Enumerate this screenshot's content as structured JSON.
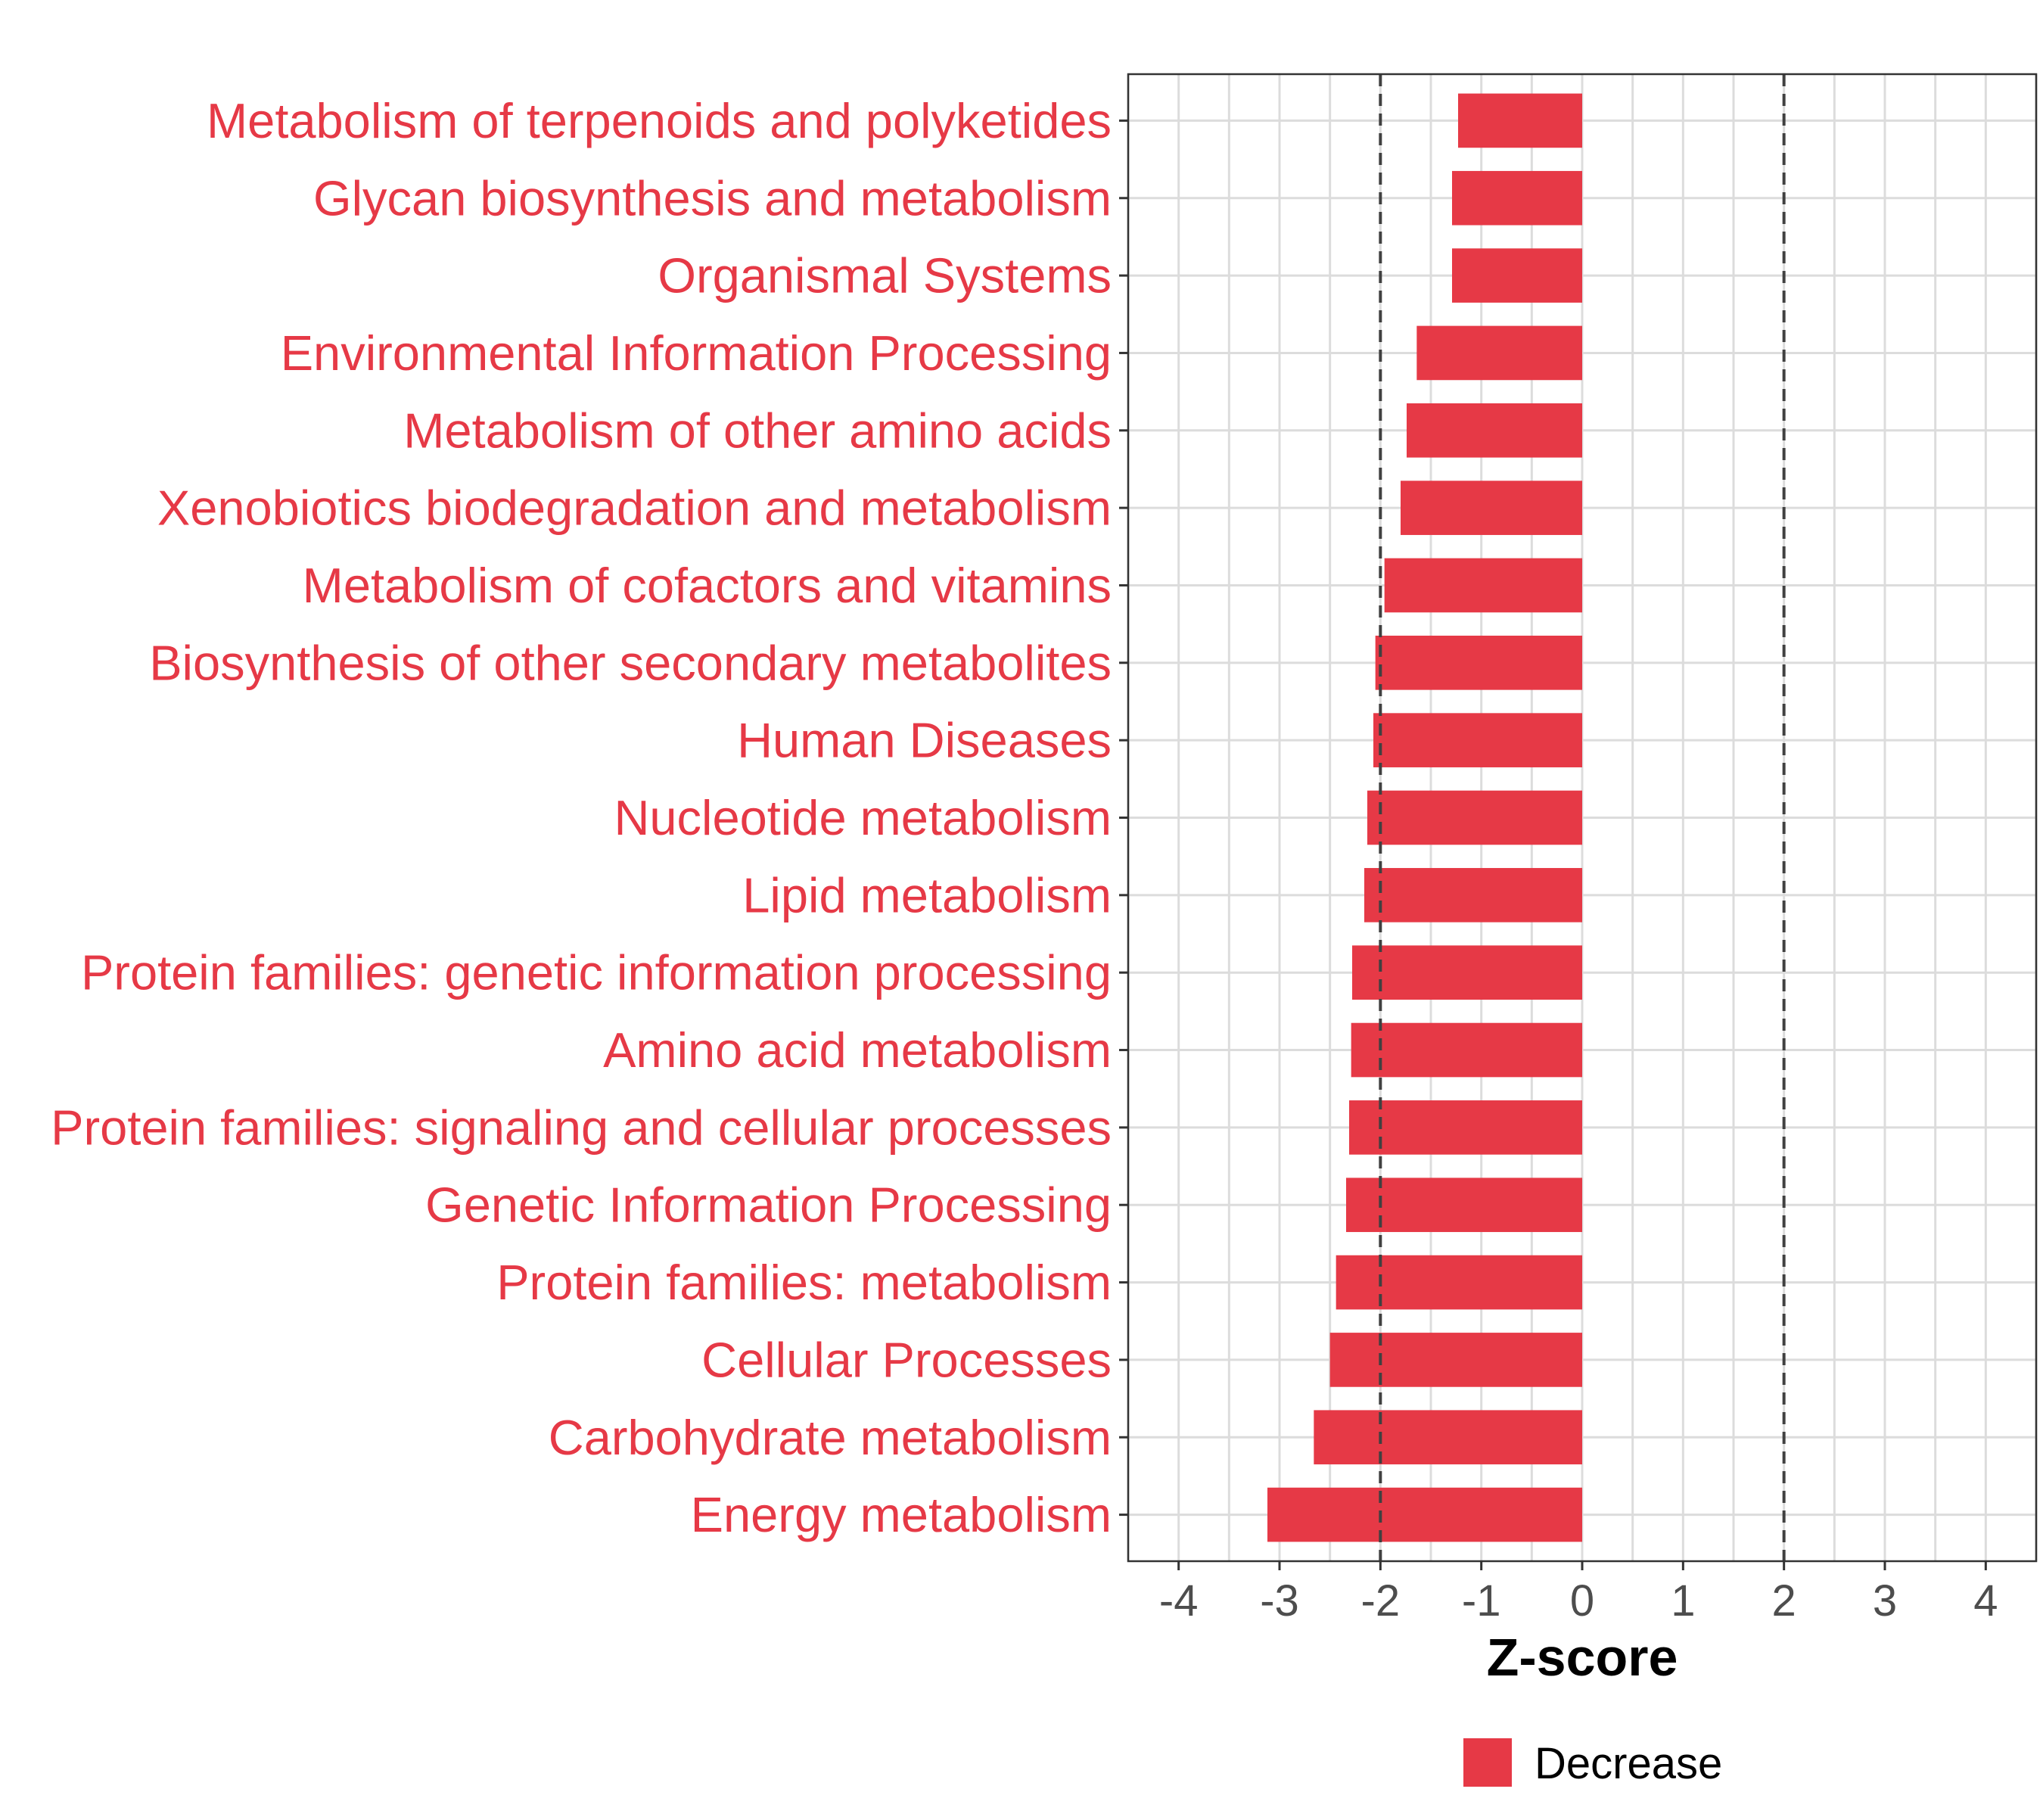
{
  "chart_data": {
    "type": "bar",
    "orientation": "horizontal",
    "categories": [
      "Metabolism of terpenoids and polyketides",
      "Glycan biosynthesis and metabolism",
      "Organismal Systems",
      "Environmental Information Processing",
      "Metabolism of other amino acids",
      "Xenobiotics biodegradation and metabolism",
      "Metabolism of cofactors and vitamins",
      "Biosynthesis of other secondary metabolites",
      "Human Diseases",
      "Nucleotide metabolism",
      "Lipid metabolism",
      "Protein families: genetic information processing",
      "Amino acid metabolism",
      "Protein families: signaling and cellular processes",
      "Genetic Information Processing",
      "Protein families: metabolism",
      "Cellular Processes",
      "Carbohydrate metabolism",
      "Energy metabolism"
    ],
    "series": [
      {
        "name": "Decrease",
        "color": "#E63946",
        "values": [
          -1.23,
          -1.29,
          -1.29,
          -1.64,
          -1.74,
          -1.8,
          -1.96,
          -2.05,
          -2.07,
          -2.13,
          -2.16,
          -2.28,
          -2.29,
          -2.31,
          -2.34,
          -2.44,
          -2.5,
          -2.66,
          -3.12
        ]
      }
    ],
    "xlabel": "Z-score",
    "ylabel": "",
    "xlim": [
      -4.5,
      4.5
    ],
    "xticks": [
      "-4",
      "-3",
      "-2",
      "-1",
      "0",
      "1",
      "2",
      "3",
      "4"
    ],
    "reference_lines": [
      -2,
      2
    ],
    "grid": true,
    "legend_position": "bottom",
    "label_color": "#E63946"
  }
}
